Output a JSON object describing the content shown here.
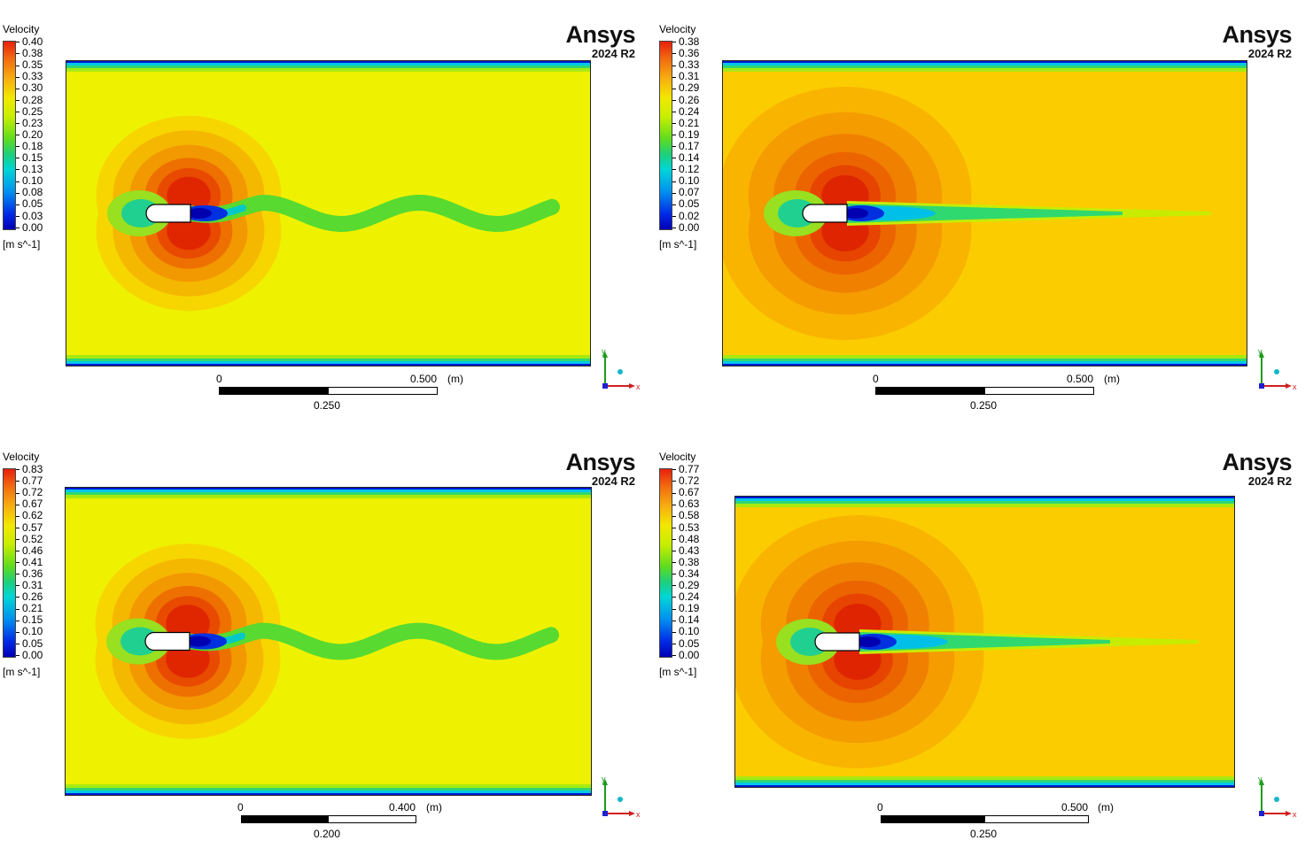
{
  "colors": {
    "high": "#e8200c",
    "mid": "#f2e800",
    "low": "#0000b4",
    "brand": "#111111"
  },
  "panels": [
    {
      "legend_title": "Velocity",
      "ticks": [
        "0.40",
        "0.38",
        "0.35",
        "0.33",
        "0.30",
        "0.28",
        "0.25",
        "0.23",
        "0.20",
        "0.18",
        "0.15",
        "0.13",
        "0.10",
        "0.08",
        "0.05",
        "0.03",
        "0.00"
      ],
      "units": "[m s^-1]",
      "brand": "Ansys",
      "version": "2024 R2",
      "scale": {
        "zero": "0",
        "max": "0.500",
        "unit": "(m)",
        "mid": "0.250"
      },
      "triad": {
        "y": "y",
        "x": "x"
      },
      "field_icon": "velocity-contour",
      "wake": "oscillating"
    },
    {
      "legend_title": "Velocity",
      "ticks": [
        "0.38",
        "0.36",
        "0.33",
        "0.31",
        "0.29",
        "0.26",
        "0.24",
        "0.21",
        "0.19",
        "0.17",
        "0.14",
        "0.12",
        "0.10",
        "0.07",
        "0.05",
        "0.02",
        "0.00"
      ],
      "units": "[m s^-1]",
      "brand": "Ansys",
      "version": "2024 R2",
      "scale": {
        "zero": "0",
        "max": "0.500",
        "unit": "(m)",
        "mid": "0.250"
      },
      "triad": {
        "y": "y",
        "x": "x"
      },
      "field_icon": "velocity-contour",
      "wake": "steady"
    },
    {
      "legend_title": "Velocity",
      "ticks": [
        "0.83",
        "0.77",
        "0.72",
        "0.67",
        "0.62",
        "0.57",
        "0.52",
        "0.46",
        "0.41",
        "0.36",
        "0.31",
        "0.26",
        "0.21",
        "0.15",
        "0.10",
        "0.05",
        "0.00"
      ],
      "units": "[m s^-1]",
      "brand": "Ansys",
      "version": "2024 R2",
      "scale": {
        "zero": "0",
        "max": "0.400",
        "unit": "(m)",
        "mid": "0.200"
      },
      "triad": {
        "y": "y",
        "x": "x"
      },
      "field_icon": "velocity-contour",
      "wake": "oscillating"
    },
    {
      "legend_title": "Velocity",
      "ticks": [
        "0.77",
        "0.72",
        "0.67",
        "0.63",
        "0.58",
        "0.53",
        "0.48",
        "0.43",
        "0.38",
        "0.34",
        "0.29",
        "0.24",
        "0.19",
        "0.14",
        "0.10",
        "0.05",
        "0.00"
      ],
      "units": "[m s^-1]",
      "brand": "Ansys",
      "version": "2024 R2",
      "scale": {
        "zero": "0",
        "max": "0.500",
        "unit": "(m)",
        "mid": "0.250"
      },
      "triad": {
        "y": "y",
        "x": "x"
      },
      "field_icon": "velocity-contour",
      "wake": "steady"
    }
  ]
}
